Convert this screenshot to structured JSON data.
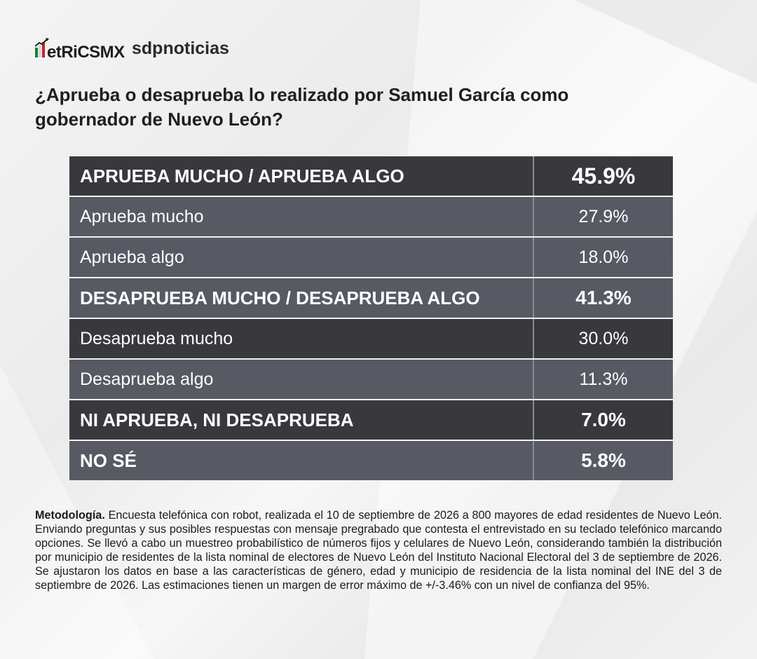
{
  "brand": {
    "metrics_logo": "MetricsMX",
    "partner_logo": "sdpnoticias",
    "flag_colors": [
      "#1f7a3a",
      "#ffffff",
      "#c8202a"
    ]
  },
  "question": "¿Aprueba o desaprueba lo realizado por Samuel García como gobernador de Nuevo León?",
  "chart_data": {
    "type": "table",
    "rows": [
      {
        "label": "APRUEBA MUCHO / APRUEBA ALGO",
        "value": "45.9%",
        "bold": true,
        "style": "dark"
      },
      {
        "label": "Aprueba mucho",
        "value": "27.9%",
        "bold": false,
        "style": "light"
      },
      {
        "label": "Aprueba algo",
        "value": "18.0%",
        "bold": false,
        "style": "light"
      },
      {
        "label": "DESAPRUEBA MUCHO / DESAPRUEBA ALGO",
        "value": "41.3%",
        "bold": true,
        "style": "light"
      },
      {
        "label": "Desaprueba mucho",
        "value": "30.0%",
        "bold": false,
        "style": "dark"
      },
      {
        "label": "Desaprueba algo",
        "value": "11.3%",
        "bold": false,
        "style": "light"
      },
      {
        "label": "NI APRUEBA, NI DESAPRUEBA",
        "value": "7.0%",
        "bold": true,
        "style": "dark"
      },
      {
        "label": "NO SÉ",
        "value": "5.8%",
        "bold": true,
        "style": "light"
      }
    ]
  },
  "methodology": {
    "label": "Metodología.",
    "text": " Encuesta telefónica con robot, realizada el 10 de septiembre de 2026 a 800 mayores de edad residentes de Nuevo León. Enviando preguntas y sus posibles respuestas con mensaje pregrabado que contesta el entrevistado en su teclado telefónico marcando opciones. Se llevó a cabo un muestreo probabilístico de números fijos y celulares de Nuevo León, considerando también la distribución por municipio de residentes de la lista nominal de electores de Nuevo León del Instituto Nacional Electoral del 3 de septiembre de 2026. Se ajustaron los datos en base a las características de género, edad y municipio de residencia de la lista nominal del INE del 3 de septiembre de 2026. Las estimaciones tienen un margen de error máximo de +/-3.46% con un nivel de confianza del 95%."
  }
}
